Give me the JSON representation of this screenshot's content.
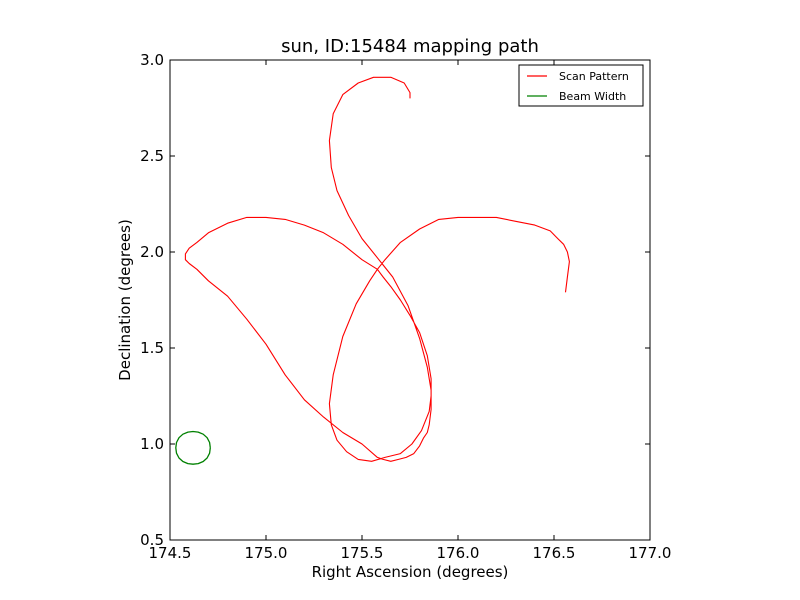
{
  "chart_data": {
    "type": "line",
    "title": "sun, ID:15484 mapping path",
    "xlabel": "Right Ascension (degrees)",
    "ylabel": "Declination (degrees)",
    "xlim": [
      174.5,
      177.0
    ],
    "ylim": [
      0.5,
      3.0
    ],
    "xticks": [
      "174.5",
      "175.0",
      "175.5",
      "176.0",
      "176.5",
      "177.0"
    ],
    "yticks": [
      "0.5",
      "1.0",
      "1.5",
      "2.0",
      "2.5",
      "3.0"
    ],
    "xtick_values": [
      174.5,
      175.0,
      175.5,
      176.0,
      176.5,
      177.0
    ],
    "ytick_values": [
      0.5,
      1.0,
      1.5,
      2.0,
      2.5,
      3.0
    ],
    "grid": false,
    "legend_position": "top-right",
    "series": [
      {
        "name": "Scan Pattern",
        "color": "#ff0000",
        "x": [
          175.75,
          175.75,
          175.72,
          175.65,
          175.56,
          175.48,
          175.4,
          175.35,
          175.33,
          175.34,
          175.37,
          175.43,
          175.5,
          175.58,
          175.66,
          175.74,
          175.8,
          175.84,
          175.86,
          175.86,
          175.85,
          175.84,
          175.82,
          175.8,
          175.77,
          175.73,
          175.69,
          175.65,
          175.61,
          175.58,
          175.5,
          175.4,
          175.3,
          175.2,
          175.1,
          175.0,
          174.9,
          174.8,
          174.7,
          174.64,
          174.6,
          174.58,
          174.58,
          174.6,
          174.64,
          174.7,
          174.8,
          174.9,
          175.0,
          175.1,
          175.2,
          175.3,
          175.4,
          175.5,
          175.58,
          175.61,
          175.65,
          175.7,
          175.75,
          175.8,
          175.84,
          175.86,
          175.86,
          175.85,
          175.81,
          175.76,
          175.7,
          175.62,
          175.55,
          175.48,
          175.42,
          175.37,
          175.34,
          175.33,
          175.35,
          175.4,
          175.47,
          175.54,
          175.58,
          175.62,
          175.7,
          175.8,
          175.9,
          176.0,
          176.1,
          176.2,
          176.3,
          176.4,
          176.48,
          176.52,
          176.55,
          176.57,
          176.58,
          176.57,
          176.56
        ],
        "y": [
          2.8,
          2.83,
          2.88,
          2.91,
          2.91,
          2.88,
          2.82,
          2.72,
          2.58,
          2.44,
          2.32,
          2.19,
          2.07,
          1.97,
          1.87,
          1.72,
          1.55,
          1.4,
          1.28,
          1.18,
          1.1,
          1.06,
          1.03,
          0.99,
          0.95,
          0.93,
          0.92,
          0.91,
          0.92,
          0.93,
          1.0,
          1.06,
          1.14,
          1.23,
          1.36,
          1.52,
          1.65,
          1.77,
          1.85,
          1.91,
          1.94,
          1.96,
          1.99,
          2.02,
          2.05,
          2.1,
          2.15,
          2.18,
          2.18,
          2.17,
          2.14,
          2.1,
          2.04,
          1.96,
          1.91,
          1.87,
          1.82,
          1.75,
          1.67,
          1.58,
          1.46,
          1.34,
          1.25,
          1.17,
          1.07,
          1.0,
          0.95,
          0.93,
          0.91,
          0.92,
          0.96,
          1.02,
          1.1,
          1.21,
          1.36,
          1.56,
          1.73,
          1.85,
          1.91,
          1.96,
          2.05,
          2.12,
          2.17,
          2.18,
          2.18,
          2.18,
          2.16,
          2.14,
          2.11,
          2.07,
          2.04,
          2.0,
          1.95,
          1.87,
          1.79
        ]
      },
      {
        "name": "Beam Width",
        "color": "#008000",
        "x": [
          174.71,
          174.706,
          174.693,
          174.673,
          174.647,
          174.62,
          174.593,
          174.567,
          174.547,
          174.534,
          174.53,
          174.534,
          174.547,
          174.567,
          174.593,
          174.62,
          174.647,
          174.673,
          174.693,
          174.706,
          174.71
        ],
        "y": [
          0.98,
          1.008,
          1.033,
          1.051,
          1.062,
          1.065,
          1.062,
          1.051,
          1.033,
          1.008,
          0.98,
          0.952,
          0.927,
          0.909,
          0.898,
          0.895,
          0.898,
          0.909,
          0.927,
          0.952,
          0.98
        ]
      }
    ]
  }
}
